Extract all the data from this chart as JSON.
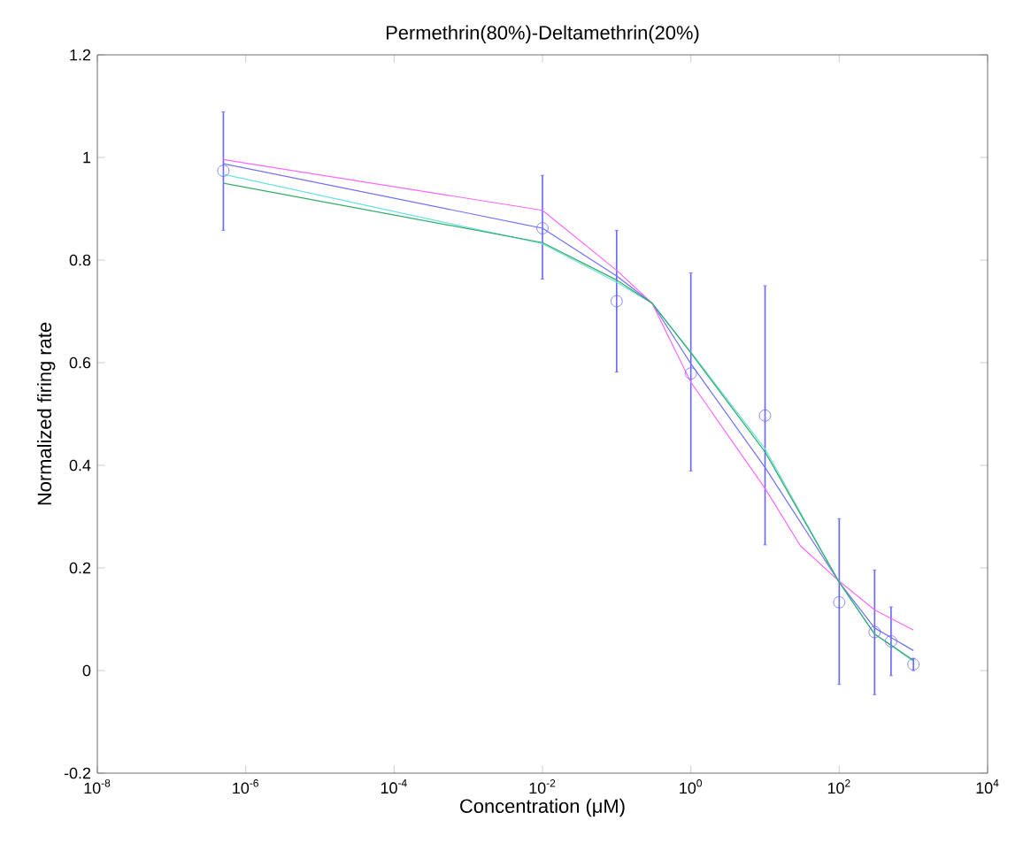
{
  "chart_data": {
    "type": "line",
    "title": "Permethrin(80%)-Deltamethrin(20%)",
    "xlabel": "Concentration (μM)",
    "ylabel": "Normalized firing rate",
    "log": "x",
    "grid": false,
    "xlim": [
      1e-08,
      10000.0
    ],
    "ylim": [
      -0.2,
      1.2
    ],
    "xticks": [
      {
        "value": 1e-08,
        "label": "10$^{-8}$"
      },
      {
        "value": 1e-06,
        "label": "10$^{-6}$"
      },
      {
        "value": 0.0001,
        "label": "10$^{-4}$"
      },
      {
        "value": 0.01,
        "label": "10$^{-2}$"
      },
      {
        "value": 1,
        "label": "10$^{0}$"
      },
      {
        "value": 100,
        "label": "10$^{2}$"
      },
      {
        "value": 10000.0,
        "label": "10$^{4}$"
      }
    ],
    "yticks": [
      -0.2,
      0,
      0.2,
      0.4,
      0.6,
      0.8,
      1,
      1.2
    ],
    "series": [
      {
        "type": "scatter",
        "marker": "circle",
        "color": "#6666ff",
        "x": [
          5e-07,
          0.01,
          0.1,
          1,
          10,
          100,
          300,
          500,
          1000
        ],
        "values": [
          0.974,
          0.862,
          0.72,
          0.579,
          0.497,
          0.133,
          0.075,
          0.057,
          0.012
        ],
        "errors": [
          [
            0.858,
            1.089
          ],
          [
            0.763,
            0.965
          ],
          [
            0.582,
            0.858
          ],
          [
            0.389,
            0.775
          ],
          [
            0.245,
            0.75
          ],
          [
            -0.027,
            0.296
          ],
          [
            -0.047,
            0.196
          ],
          [
            -0.01,
            0.124
          ],
          [
            0.0,
            0.024
          ]
        ]
      },
      {
        "marker": "none",
        "color": "#ff66ff",
        "x": [
          5e-07,
          0.01,
          0.1,
          0.3,
          1,
          10,
          30,
          100,
          300,
          1000
        ],
        "values": [
          0.996,
          0.897,
          0.78,
          0.716,
          0.562,
          0.355,
          0.243,
          0.174,
          0.118,
          0.079
        ]
      },
      {
        "marker": "none",
        "color": "#6f6fff",
        "x": [
          5e-07,
          0.01,
          0.1,
          0.3,
          1,
          10,
          100,
          300,
          1000
        ],
        "values": [
          0.988,
          0.862,
          0.769,
          0.716,
          0.598,
          0.396,
          0.172,
          0.083,
          0.039
        ]
      },
      {
        "marker": "none",
        "color": "#66e0e0",
        "x": [
          5e-07,
          0.01,
          0.1,
          0.3,
          1,
          10,
          100,
          300,
          1000
        ],
        "values": [
          0.967,
          0.832,
          0.757,
          0.716,
          0.621,
          0.432,
          0.172,
          0.071,
          0.018
        ]
      },
      {
        "marker": "none",
        "color": "#33aa66",
        "x": [
          5e-07,
          0.01,
          0.1,
          0.3,
          1,
          10,
          100,
          300,
          1000
        ],
        "values": [
          0.95,
          0.834,
          0.761,
          0.716,
          0.619,
          0.426,
          0.172,
          0.071,
          0.02
        ]
      }
    ]
  }
}
